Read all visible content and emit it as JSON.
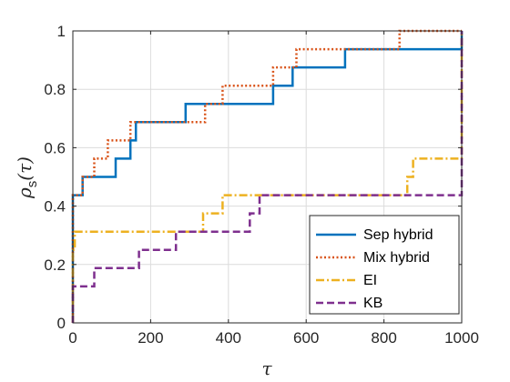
{
  "chart_data": {
    "type": "line",
    "title": "",
    "xlabel": "τ",
    "ylabel_main": "ρ",
    "ylabel_sub": "s",
    "ylabel_arg": "(τ)",
    "xlim": [
      0,
      1000
    ],
    "ylim": [
      0,
      1
    ],
    "xticks": [
      0,
      200,
      400,
      600,
      800,
      1000
    ],
    "yticks": [
      0,
      0.2,
      0.4,
      0.6,
      0.8,
      1
    ],
    "xtick_labels": [
      "0",
      "200",
      "400",
      "600",
      "800",
      "1000"
    ],
    "ytick_labels": [
      "0",
      "0.2",
      "0.4",
      "0.6",
      "0.8",
      "1"
    ],
    "grid": true,
    "legend_position": "bottom-right",
    "series": [
      {
        "name": "Sep hybrid",
        "color": "#0072BD",
        "style": "solid",
        "steps": [
          [
            0,
            0
          ],
          [
            0,
            0.4375
          ],
          [
            25,
            0.4375
          ],
          [
            25,
            0.5
          ],
          [
            110,
            0.5
          ],
          [
            110,
            0.5625
          ],
          [
            148,
            0.5625
          ],
          [
            148,
            0.625
          ],
          [
            162,
            0.625
          ],
          [
            162,
            0.6875
          ],
          [
            290,
            0.6875
          ],
          [
            290,
            0.75
          ],
          [
            515,
            0.75
          ],
          [
            515,
            0.8125
          ],
          [
            565,
            0.8125
          ],
          [
            565,
            0.875
          ],
          [
            700,
            0.875
          ],
          [
            700,
            0.9375
          ],
          [
            1000,
            0.9375
          ],
          [
            1000,
            1
          ]
        ]
      },
      {
        "name": "Mix hybrid",
        "color": "#D95319",
        "style": "dotted",
        "steps": [
          [
            0,
            0
          ],
          [
            0,
            0.4375
          ],
          [
            25,
            0.4375
          ],
          [
            25,
            0.5
          ],
          [
            55,
            0.5
          ],
          [
            55,
            0.5625
          ],
          [
            90,
            0.5625
          ],
          [
            90,
            0.625
          ],
          [
            148,
            0.625
          ],
          [
            148,
            0.6875
          ],
          [
            340,
            0.6875
          ],
          [
            340,
            0.75
          ],
          [
            385,
            0.75
          ],
          [
            385,
            0.8125
          ],
          [
            515,
            0.8125
          ],
          [
            515,
            0.875
          ],
          [
            575,
            0.875
          ],
          [
            575,
            0.9375
          ],
          [
            840,
            0.9375
          ],
          [
            840,
            1
          ],
          [
            1000,
            1
          ]
        ]
      },
      {
        "name": "EI",
        "color": "#EDB120",
        "style": "dashdot",
        "steps": [
          [
            0,
            0
          ],
          [
            0,
            0.25
          ],
          [
            5,
            0.25
          ],
          [
            5,
            0.3125
          ],
          [
            335,
            0.3125
          ],
          [
            335,
            0.375
          ],
          [
            385,
            0.375
          ],
          [
            385,
            0.4375
          ],
          [
            860,
            0.4375
          ],
          [
            860,
            0.5
          ],
          [
            875,
            0.5
          ],
          [
            875,
            0.5625
          ],
          [
            1000,
            0.5625
          ],
          [
            1000,
            1
          ]
        ]
      },
      {
        "name": "KB",
        "color": "#7E2F8E",
        "style": "dashed",
        "steps": [
          [
            0,
            0
          ],
          [
            0,
            0.125
          ],
          [
            55,
            0.125
          ],
          [
            55,
            0.1875
          ],
          [
            170,
            0.1875
          ],
          [
            170,
            0.25
          ],
          [
            265,
            0.25
          ],
          [
            265,
            0.3125
          ],
          [
            455,
            0.3125
          ],
          [
            455,
            0.375
          ],
          [
            480,
            0.375
          ],
          [
            480,
            0.4375
          ],
          [
            1000,
            0.4375
          ],
          [
            1000,
            1
          ]
        ]
      }
    ]
  }
}
